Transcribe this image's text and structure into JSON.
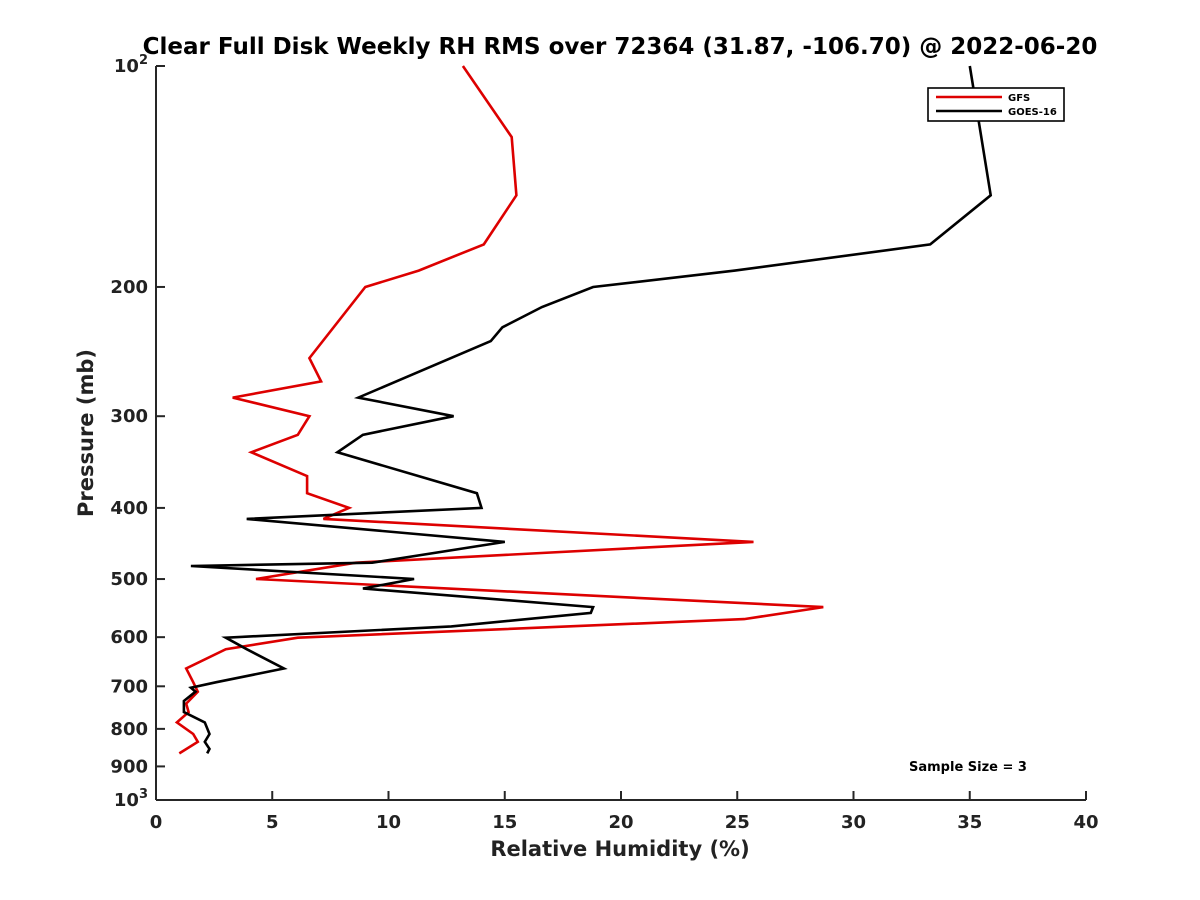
{
  "chart_data": {
    "type": "line",
    "title": "Clear Full Disk Weekly RH RMS over 72364 (31.87, -106.70) @ 2022-06-20",
    "xlabel": "Relative Humidity (%)",
    "ylabel": "Pressure (mb)",
    "xlim": [
      0,
      40
    ],
    "ylim": [
      100,
      1000
    ],
    "y_scale": "log",
    "y_reversed": true,
    "grid": false,
    "legend_position": "top-right",
    "x_ticks": [
      "0",
      "5",
      "10",
      "15",
      "20",
      "25",
      "30",
      "35",
      "40"
    ],
    "y_ticks": [
      {
        "value": 100,
        "base": "10",
        "exp": "2"
      },
      {
        "value": 200,
        "label": "200"
      },
      {
        "value": 300,
        "label": "300"
      },
      {
        "value": 400,
        "label": "400"
      },
      {
        "value": 500,
        "label": "500"
      },
      {
        "value": 600,
        "label": "600"
      },
      {
        "value": 700,
        "label": "700"
      },
      {
        "value": 800,
        "label": "800"
      },
      {
        "value": 900,
        "label": "900"
      },
      {
        "value": 1000,
        "base": "10",
        "exp": "3"
      }
    ],
    "annotation": "Sample Size = 3",
    "series": [
      {
        "name": "GFS",
        "color": "#dd0000",
        "points": [
          [
            13.2,
            100
          ],
          [
            15.3,
            125
          ],
          [
            15.5,
            150
          ],
          [
            14.1,
            175
          ],
          [
            11.3,
            190
          ],
          [
            9.0,
            200
          ],
          [
            6.6,
            250
          ],
          [
            7.1,
            269
          ],
          [
            3.3,
            283
          ],
          [
            6.6,
            300
          ],
          [
            6.1,
            318
          ],
          [
            4.1,
            336
          ],
          [
            6.5,
            362
          ],
          [
            6.5,
            382
          ],
          [
            8.3,
            400
          ],
          [
            7.2,
            414
          ],
          [
            25.7,
            445
          ],
          [
            8.6,
            475
          ],
          [
            4.3,
            500
          ],
          [
            28.7,
            546
          ],
          [
            25.3,
            567
          ],
          [
            6.1,
            601
          ],
          [
            3.0,
            623
          ],
          [
            1.3,
            662
          ],
          [
            1.6,
            691
          ],
          [
            1.8,
            712
          ],
          [
            1.3,
            739
          ],
          [
            1.4,
            759
          ],
          [
            0.9,
            784
          ],
          [
            1.6,
            813
          ],
          [
            1.8,
            833
          ],
          [
            1.0,
            864
          ]
        ]
      },
      {
        "name": "GOES-16",
        "color": "#000000",
        "points": [
          [
            35.0,
            100
          ],
          [
            35.9,
            150
          ],
          [
            33.3,
            175
          ],
          [
            24.9,
            190
          ],
          [
            18.8,
            200
          ],
          [
            16.6,
            213
          ],
          [
            14.9,
            227
          ],
          [
            14.4,
            237
          ],
          [
            8.7,
            283
          ],
          [
            12.8,
            300
          ],
          [
            8.9,
            318
          ],
          [
            7.8,
            336
          ],
          [
            11.3,
            362
          ],
          [
            13.8,
            382
          ],
          [
            14.0,
            400
          ],
          [
            3.9,
            414
          ],
          [
            15.0,
            445
          ],
          [
            9.3,
            475
          ],
          [
            1.5,
            480
          ],
          [
            11.1,
            500
          ],
          [
            8.9,
            515
          ],
          [
            18.8,
            546
          ],
          [
            18.7,
            556
          ],
          [
            12.7,
            580
          ],
          [
            3.0,
            601
          ],
          [
            3.9,
            623
          ],
          [
            5.5,
            662
          ],
          [
            2.6,
            691
          ],
          [
            1.5,
            703
          ],
          [
            1.7,
            712
          ],
          [
            1.2,
            733
          ],
          [
            1.2,
            759
          ],
          [
            2.1,
            784
          ],
          [
            2.3,
            813
          ],
          [
            2.1,
            833
          ],
          [
            2.3,
            852
          ],
          [
            2.2,
            864
          ]
        ]
      }
    ]
  }
}
